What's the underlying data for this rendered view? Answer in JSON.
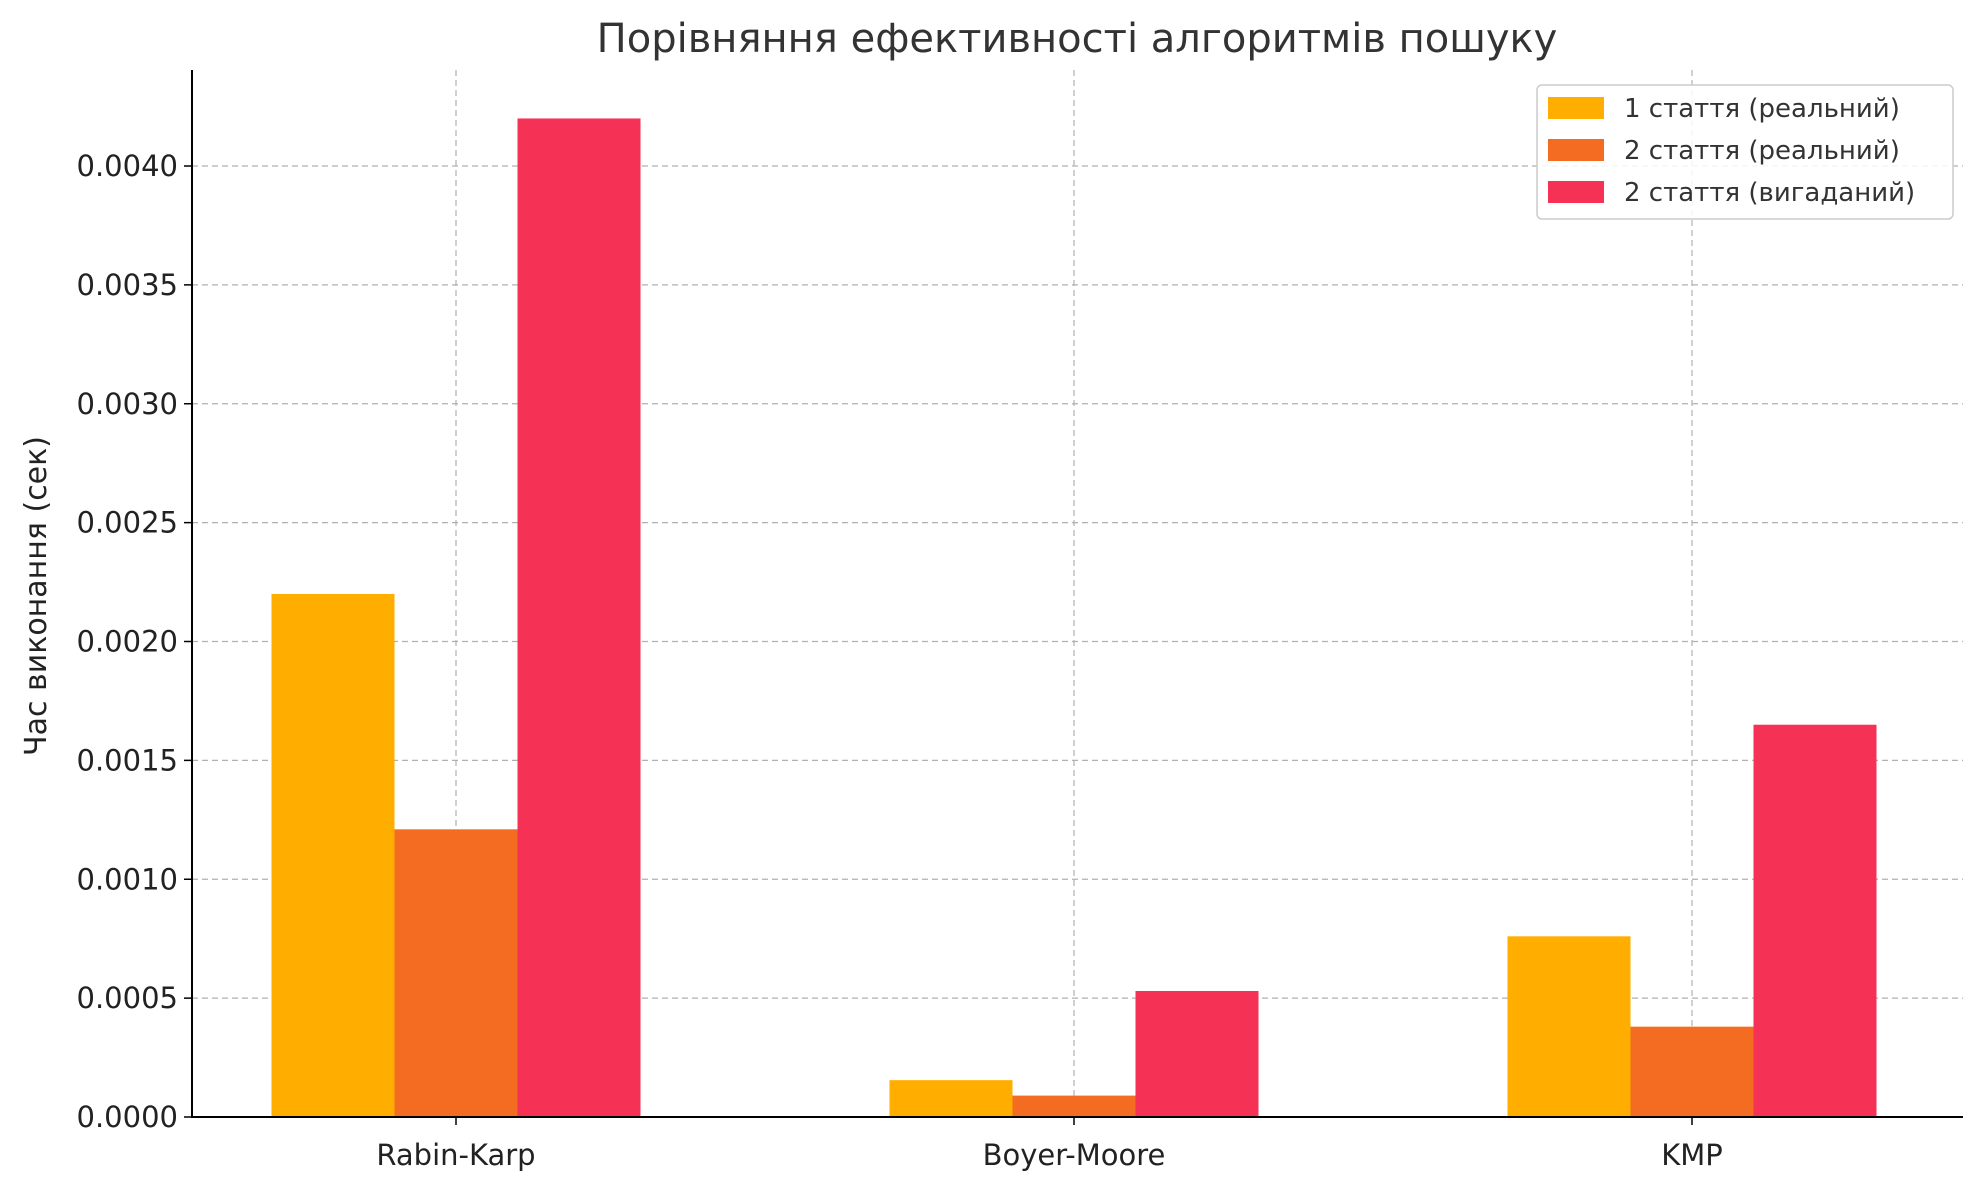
{
  "chart_data": {
    "type": "bar",
    "title": "Порівняння ефективності алгоритмів пошуку",
    "xlabel": "",
    "ylabel": "Час виконання (сек)",
    "categories": [
      "Rabin-Karp",
      "Boyer-Moore",
      "KMP"
    ],
    "series": [
      {
        "name": "1 стаття (реальний)",
        "color": "#FFAE00",
        "values": [
          0.0022,
          0.000155,
          0.00076
        ]
      },
      {
        "name": "2 стаття (реальний)",
        "color": "#F46B22",
        "values": [
          0.00121,
          9e-05,
          0.00038
        ]
      },
      {
        "name": "2 стаття (вигаданий)",
        "color": "#F53256",
        "values": [
          0.0042,
          0.00053,
          0.00165
        ]
      }
    ],
    "ylim": [
      0,
      0.0044
    ],
    "yticks": [
      "0.0000",
      "0.0005",
      "0.0010",
      "0.0015",
      "0.0020",
      "0.0025",
      "0.0030",
      "0.0035",
      "0.0040"
    ],
    "grid": true,
    "legend_position": "top-right"
  }
}
